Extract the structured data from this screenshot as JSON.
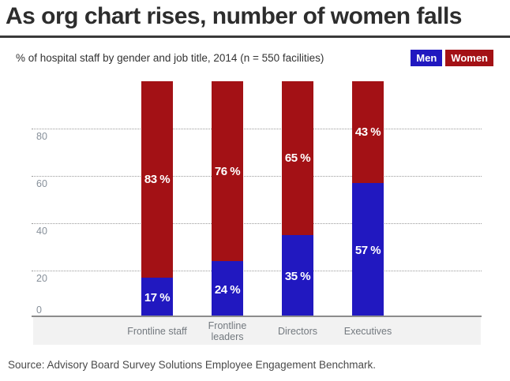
{
  "header": {
    "title": "As org chart rises, number of women falls",
    "subtitle": "% of hospital staff by gender and job title, 2014 (n = 550 facilities)"
  },
  "legend": {
    "position": "top-right",
    "items": [
      {
        "label": "Men",
        "color": "#2118c0"
      },
      {
        "label": "Women",
        "color": "#a31115"
      }
    ]
  },
  "chart_data": {
    "type": "bar",
    "stacked": true,
    "title": "As org chart rises, number of women falls",
    "subtitle": "% of hospital staff by gender and job title, 2014 (n = 550 facilities)",
    "categories": [
      "Frontline staff",
      "Frontline leaders",
      "Directors",
      "Executives"
    ],
    "category_lines": [
      [
        "Frontline staff"
      ],
      [
        "Frontline",
        "leaders"
      ],
      [
        "Directors"
      ],
      [
        "Executives"
      ]
    ],
    "series": [
      {
        "name": "Men",
        "color": "#2118c0",
        "values": [
          17,
          24,
          35,
          57
        ],
        "labels": [
          "17 %",
          "24 %",
          "35 %",
          "57 %"
        ]
      },
      {
        "name": "Women",
        "color": "#a31115",
        "values": [
          83,
          76,
          65,
          43
        ],
        "labels": [
          "83 %",
          "76 %",
          "65 %",
          "43 %"
        ]
      }
    ],
    "ylim": [
      0,
      100
    ],
    "yticks": [
      0,
      20,
      40,
      60,
      80
    ],
    "grid": "horizontal-dotted",
    "legend_position": "top-right"
  },
  "source": {
    "text": "Source: Advisory Board Survey Solutions Employee Engagement Benchmark."
  }
}
